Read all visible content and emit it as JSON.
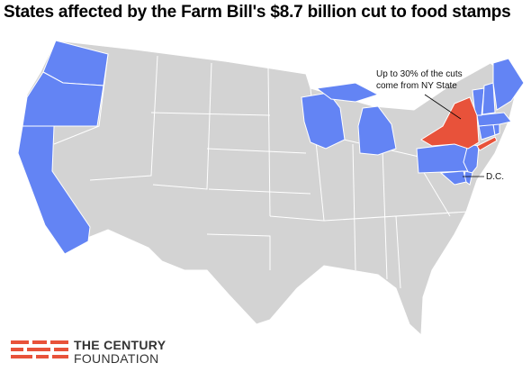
{
  "title": "States affected by the Farm Bill's $8.7 billion cut to food stamps",
  "annotations": {
    "ny_line1": "Up to 30% of the cuts",
    "ny_line2": "come from NY State",
    "dc": "D.C."
  },
  "colors": {
    "affected": "#6384f4",
    "highlight": "#e8523a",
    "unaffected": "#d3d3d3",
    "border": "#ffffff"
  },
  "affected_states": [
    "WA",
    "OR",
    "CA",
    "WI",
    "MI",
    "PA",
    "NJ",
    "DE",
    "MD",
    "CT",
    "RI",
    "MA",
    "VT",
    "NH",
    "ME",
    "DC"
  ],
  "highlighted_states": [
    "NY"
  ],
  "logo": {
    "line1": "THE CENTURY",
    "line2": "FOUNDATION"
  }
}
